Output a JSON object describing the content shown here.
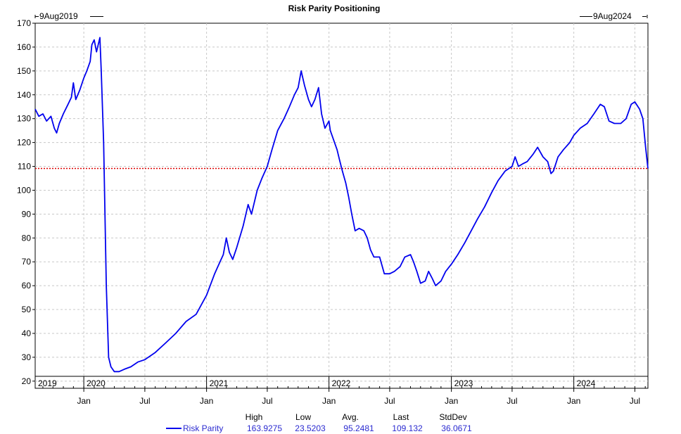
{
  "chart_data": {
    "type": "line",
    "title": "Risk Parity Positioning",
    "start_label": "9Aug2019",
    "end_label": "9Aug2024",
    "xlabel": "",
    "ylabel": "",
    "ylim": [
      17,
      170
    ],
    "y_ticks": [
      20,
      30,
      40,
      50,
      60,
      70,
      80,
      90,
      100,
      110,
      120,
      130,
      140,
      150,
      160,
      170
    ],
    "xlim": [
      "2019-08-09",
      "2024-08-09"
    ],
    "year_ticks": [
      {
        "label": "2019",
        "date": "2019-08-09"
      },
      {
        "label": "2020",
        "date": "2020-01-01"
      },
      {
        "label": "2021",
        "date": "2021-01-01"
      },
      {
        "label": "2022",
        "date": "2022-01-01"
      },
      {
        "label": "2023",
        "date": "2023-01-01"
      },
      {
        "label": "2024",
        "date": "2024-01-01"
      }
    ],
    "month_ticks": [
      {
        "label": "Jan",
        "date": "2020-01-01"
      },
      {
        "label": "Jul",
        "date": "2020-07-01"
      },
      {
        "label": "Jan",
        "date": "2021-01-01"
      },
      {
        "label": "Jul",
        "date": "2021-07-01"
      },
      {
        "label": "Jan",
        "date": "2022-01-01"
      },
      {
        "label": "Jul",
        "date": "2022-07-01"
      },
      {
        "label": "Jan",
        "date": "2023-01-01"
      },
      {
        "label": "Jul",
        "date": "2023-07-01"
      },
      {
        "label": "Jan",
        "date": "2024-01-01"
      },
      {
        "label": "Jul",
        "date": "2024-07-01"
      }
    ],
    "grid": true,
    "reference_line": {
      "value": 109.132,
      "color": "#dd0000",
      "style": "dotted"
    },
    "series": [
      {
        "name": "Risk Parity",
        "color": "#0000ee",
        "points": [
          [
            "2019-08-09",
            134
          ],
          [
            "2019-08-20",
            131
          ],
          [
            "2019-09-01",
            132
          ],
          [
            "2019-09-12",
            129
          ],
          [
            "2019-09-25",
            131
          ],
          [
            "2019-10-05",
            126
          ],
          [
            "2019-10-12",
            124
          ],
          [
            "2019-10-20",
            128
          ],
          [
            "2019-11-01",
            132
          ],
          [
            "2019-11-15",
            136
          ],
          [
            "2019-11-25",
            139
          ],
          [
            "2019-12-01",
            145
          ],
          [
            "2019-12-08",
            138
          ],
          [
            "2019-12-20",
            142
          ],
          [
            "2020-01-01",
            147
          ],
          [
            "2020-01-10",
            150
          ],
          [
            "2020-01-20",
            154
          ],
          [
            "2020-01-25",
            161
          ],
          [
            "2020-02-01",
            163
          ],
          [
            "2020-02-08",
            158
          ],
          [
            "2020-02-18",
            164
          ],
          [
            "2020-02-22",
            150
          ],
          [
            "2020-02-29",
            120
          ],
          [
            "2020-03-08",
            60
          ],
          [
            "2020-03-15",
            30
          ],
          [
            "2020-03-22",
            26
          ],
          [
            "2020-04-01",
            24
          ],
          [
            "2020-04-15",
            24
          ],
          [
            "2020-05-01",
            25
          ],
          [
            "2020-05-20",
            26
          ],
          [
            "2020-06-10",
            28
          ],
          [
            "2020-07-01",
            29
          ],
          [
            "2020-08-01",
            32
          ],
          [
            "2020-09-01",
            36
          ],
          [
            "2020-10-01",
            40
          ],
          [
            "2020-11-01",
            45
          ],
          [
            "2020-12-01",
            48
          ],
          [
            "2021-01-01",
            56
          ],
          [
            "2021-01-25",
            65
          ],
          [
            "2021-02-10",
            70
          ],
          [
            "2021-02-20",
            73
          ],
          [
            "2021-03-01",
            80
          ],
          [
            "2021-03-10",
            74
          ],
          [
            "2021-03-20",
            71
          ],
          [
            "2021-04-01",
            76
          ],
          [
            "2021-04-20",
            85
          ],
          [
            "2021-05-05",
            94
          ],
          [
            "2021-05-15",
            90
          ],
          [
            "2021-06-01",
            100
          ],
          [
            "2021-06-15",
            105
          ],
          [
            "2021-07-01",
            110
          ],
          [
            "2021-07-15",
            117
          ],
          [
            "2021-08-01",
            125
          ],
          [
            "2021-08-20",
            130
          ],
          [
            "2021-09-05",
            135
          ],
          [
            "2021-09-20",
            140
          ],
          [
            "2021-10-01",
            143
          ],
          [
            "2021-10-10",
            150
          ],
          [
            "2021-10-20",
            144
          ],
          [
            "2021-11-01",
            138
          ],
          [
            "2021-11-10",
            135
          ],
          [
            "2021-11-20",
            138
          ],
          [
            "2021-12-01",
            143
          ],
          [
            "2021-12-10",
            132
          ],
          [
            "2021-12-20",
            126
          ],
          [
            "2022-01-01",
            129
          ],
          [
            "2022-01-05",
            125
          ],
          [
            "2022-01-15",
            121
          ],
          [
            "2022-01-25",
            117
          ],
          [
            "2022-02-01",
            113
          ],
          [
            "2022-02-10",
            108
          ],
          [
            "2022-02-20",
            103
          ],
          [
            "2022-03-01",
            97
          ],
          [
            "2022-03-10",
            90
          ],
          [
            "2022-03-20",
            83
          ],
          [
            "2022-04-01",
            84
          ],
          [
            "2022-04-15",
            83
          ],
          [
            "2022-04-25",
            80
          ],
          [
            "2022-05-05",
            75
          ],
          [
            "2022-05-15",
            72
          ],
          [
            "2022-06-01",
            72
          ],
          [
            "2022-06-15",
            65
          ],
          [
            "2022-07-01",
            65
          ],
          [
            "2022-07-15",
            66
          ],
          [
            "2022-08-01",
            68
          ],
          [
            "2022-08-15",
            72
          ],
          [
            "2022-09-01",
            73
          ],
          [
            "2022-09-10",
            70
          ],
          [
            "2022-09-20",
            66
          ],
          [
            "2022-10-01",
            61
          ],
          [
            "2022-10-15",
            62
          ],
          [
            "2022-10-25",
            66
          ],
          [
            "2022-11-05",
            63
          ],
          [
            "2022-11-15",
            60
          ],
          [
            "2022-12-01",
            62
          ],
          [
            "2022-12-15",
            66
          ],
          [
            "2023-01-01",
            69
          ],
          [
            "2023-01-20",
            73
          ],
          [
            "2023-02-10",
            78
          ],
          [
            "2023-03-01",
            83
          ],
          [
            "2023-03-20",
            88
          ],
          [
            "2023-04-10",
            93
          ],
          [
            "2023-05-01",
            99
          ],
          [
            "2023-05-20",
            104
          ],
          [
            "2023-06-10",
            108
          ],
          [
            "2023-07-01",
            110
          ],
          [
            "2023-07-10",
            114
          ],
          [
            "2023-07-20",
            110
          ],
          [
            "2023-08-01",
            111
          ],
          [
            "2023-08-15",
            112
          ],
          [
            "2023-09-01",
            115
          ],
          [
            "2023-09-15",
            118
          ],
          [
            "2023-10-01",
            114
          ],
          [
            "2023-10-15",
            112
          ],
          [
            "2023-10-25",
            107
          ],
          [
            "2023-11-01",
            108
          ],
          [
            "2023-11-15",
            114
          ],
          [
            "2023-12-01",
            117
          ],
          [
            "2023-12-20",
            120
          ],
          [
            "2024-01-01",
            123
          ],
          [
            "2024-01-20",
            126
          ],
          [
            "2024-02-10",
            128
          ],
          [
            "2024-03-01",
            132
          ],
          [
            "2024-03-20",
            136
          ],
          [
            "2024-04-01",
            135
          ],
          [
            "2024-04-15",
            129
          ],
          [
            "2024-05-01",
            128
          ],
          [
            "2024-05-20",
            128
          ],
          [
            "2024-06-05",
            130
          ],
          [
            "2024-06-20",
            136
          ],
          [
            "2024-07-01",
            137
          ],
          [
            "2024-07-15",
            134
          ],
          [
            "2024-07-25",
            130
          ],
          [
            "2024-08-02",
            118
          ],
          [
            "2024-08-09",
            109.132
          ]
        ]
      }
    ],
    "stats": {
      "headers": [
        "High",
        "Low",
        "Avg.",
        "Last",
        "StdDev"
      ],
      "values": [
        "163.9275",
        "23.5203",
        "95.2481",
        "109.132",
        "36.0671"
      ]
    }
  }
}
